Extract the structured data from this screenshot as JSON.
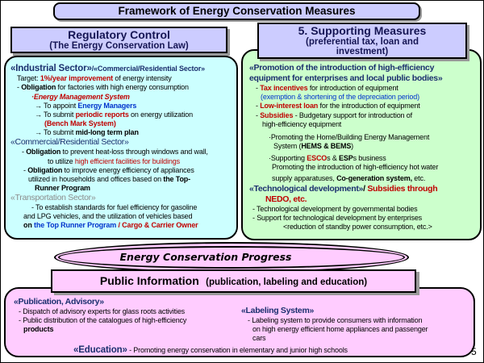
{
  "slide_number": "5",
  "title": "Framework of Energy Conservation Measures",
  "colors": {
    "header_fill": "#ccccff",
    "regulatory_fill": "#ccffff",
    "supporting_fill": "#ccffcc",
    "public_fill": "#ffccff",
    "accent_red": "#c00000",
    "accent_blue": "#0033cc",
    "accent_navy": "#1b2f6e",
    "accent_gray": "#8c8c8c"
  },
  "regulatory": {
    "header_title": "Regulatory Control",
    "header_sub": "(The Energy Conservation Law)",
    "lines": [
      {
        "r": [
          [
            "«Industrial Sector»",
            "navy bold big"
          ],
          [
            "/",
            "navy bold"
          ],
          [
            "«Commercial/Residential Sector»",
            "navy bold med"
          ]
        ]
      },
      {
        "i": 8,
        "r": [
          [
            "Target: ",
            "k"
          ],
          [
            "1%/year improvement",
            "red bold"
          ],
          [
            " of energy intensity",
            "k"
          ]
        ]
      },
      {
        "i": 8,
        "r": [
          [
            "- ",
            "k"
          ],
          [
            "Obligation",
            "bold"
          ],
          [
            " for factories with high energy consumption",
            "k"
          ]
        ]
      },
      {
        "i": 26,
        "r": [
          [
            "·Energy Management System",
            "red bold ital"
          ]
        ]
      },
      {
        "i": 30,
        "r": [
          [
            "→ To appoint ",
            "k"
          ],
          [
            "Energy Managers",
            "blue bold"
          ]
        ]
      },
      {
        "i": 30,
        "r": [
          [
            "→ To submit ",
            "k"
          ],
          [
            "periodic reports",
            "red bold"
          ],
          [
            " on energy utilization",
            "k"
          ]
        ]
      },
      {
        "i": 42,
        "r": [
          [
            "(Bench Mark System)",
            "red bold"
          ]
        ]
      },
      {
        "i": 30,
        "r": [
          [
            "→ To submit ",
            "k"
          ],
          [
            "mid-long term plan",
            "bold"
          ]
        ]
      },
      {
        "r": [
          [
            "«Commercial/Residential Sector»",
            "navy medbig"
          ]
        ]
      },
      {
        "i": 14,
        "r": [
          [
            "- ",
            "k"
          ],
          [
            "Obligation",
            "bold"
          ],
          [
            " to prevent heat-loss through windows and wall,",
            "k"
          ]
        ]
      },
      {
        "i": 46,
        "r": [
          [
            "to utilize ",
            "k"
          ],
          [
            "high efficient facilities for buildings",
            "red"
          ]
        ]
      },
      {
        "i": 16,
        "r": [
          [
            "- ",
            "k"
          ],
          [
            "Obligation",
            "bold"
          ],
          [
            " to improve energy efficiency of appliances",
            "k"
          ]
        ]
      },
      {
        "i": 22,
        "r": [
          [
            "utilized in households and offices based on ",
            "k"
          ],
          [
            "the Top-",
            "bold"
          ]
        ]
      },
      {
        "i": 30,
        "r": [
          [
            "Runner Program",
            "bold"
          ]
        ]
      },
      {
        "r": [
          [
            "«Transportation Sector»",
            "gray medbig"
          ]
        ]
      },
      {
        "i": 26,
        "r": [
          [
            "- To establish standards for fuel efficiency for gasoline",
            "k"
          ]
        ]
      },
      {
        "i": 16,
        "r": [
          [
            "and LPG vehicles, and the utilization of vehicles based",
            "k"
          ]
        ]
      },
      {
        "i": 16,
        "r": [
          [
            "on ",
            "bold"
          ],
          [
            "the Top Runner Program",
            "blue bold"
          ],
          [
            " / Cargo & Carrier Owner",
            "red bold"
          ]
        ]
      }
    ]
  },
  "supporting": {
    "header_title": "5. Supporting Measures",
    "header_sub1": "(preferential tax, loan and",
    "header_sub2": "investment)",
    "lines": [
      {
        "r": [
          [
            "«Promotion of the introduction of high-efficiency",
            "navy bold medbig"
          ]
        ]
      },
      {
        "r": [
          [
            "equipment for enterprises and local public bodies»",
            "navy bold medbig"
          ]
        ]
      },
      {
        "i": 8,
        "r": [
          [
            "- ",
            "k"
          ],
          [
            "Tax incentives",
            "red bold"
          ],
          [
            " for introduction of equipment",
            "k"
          ]
        ]
      },
      {
        "i": 14,
        "r": [
          [
            "(exemption & shortening of the depreciation period)",
            "blue"
          ]
        ]
      },
      {
        "i": 8,
        "r": [
          [
            "- ",
            "k"
          ],
          [
            "Low-interest loan",
            "red bold"
          ],
          [
            " for the introduction of equipment",
            "k"
          ]
        ]
      },
      {
        "i": 8,
        "r": [
          [
            "- ",
            "k"
          ],
          [
            "Subsidies",
            "red bold"
          ],
          [
            " - Budgetary support for introduction of",
            "k"
          ]
        ]
      },
      {
        "i": 16,
        "r": [
          [
            "high-efficiency equipment",
            "k"
          ]
        ]
      },
      {
        "i": 24,
        "mt": 5,
        "r": [
          [
            "·Promoting the Home/Building Energy Management",
            "k"
          ]
        ]
      },
      {
        "i": 30,
        "r": [
          [
            "System (",
            "k"
          ],
          [
            "HEMS & BEMS",
            "bold"
          ],
          [
            ")",
            "k"
          ]
        ]
      },
      {
        "i": 24,
        "mt": 4,
        "r": [
          [
            "·Supporting ",
            "k"
          ],
          [
            "ESCO",
            "red bold"
          ],
          [
            "s & ",
            "k"
          ],
          [
            "ESP",
            "bold"
          ],
          [
            "s business",
            "k"
          ]
        ]
      },
      {
        "i": 28,
        "r": [
          [
            "Promoting the introduction of high-efficiency hot water",
            "k"
          ]
        ]
      },
      {
        "i": 28,
        "mt": 3,
        "r": [
          [
            "supply apparatuses, ",
            "k"
          ],
          [
            "Co-generation system,",
            "bold"
          ],
          [
            " etc.",
            "k"
          ]
        ]
      },
      {
        "r": [
          [
            "«Technological development»",
            "navy bold medbig"
          ],
          [
            "/ ",
            "bold medbig"
          ],
          [
            "Subsidies through",
            "red bold medbig"
          ]
        ]
      },
      {
        "i": 20,
        "r": [
          [
            "NEDO, etc.",
            "red bold medbig"
          ]
        ]
      },
      {
        "i": 4,
        "r": [
          [
            "- Technological development by governmental bodies",
            "k"
          ]
        ]
      },
      {
        "i": 4,
        "r": [
          [
            "- Support for technological development by enterprises",
            "k"
          ]
        ]
      },
      {
        "i": 42,
        "r": [
          [
            "<reduction of standby power consumption, etc.>",
            "k"
          ]
        ]
      }
    ]
  },
  "progress": {
    "label": "Energy Conservation Progress"
  },
  "public_info": {
    "header_title": "Public Information",
    "header_sub": "(publication, labeling and education)",
    "left_lines": [
      {
        "r": [
          [
            "«Publication, Advisory»",
            "navy bold medbig"
          ]
        ]
      },
      {
        "i": 6,
        "r": [
          [
            "- Dispatch of advisory experts for glass roots activities",
            "k"
          ]
        ]
      },
      {
        "i": 6,
        "r": [
          [
            "- Public distribution of the catalogues of high-efficiency",
            "k"
          ]
        ]
      },
      {
        "i": 12,
        "r": [
          [
            "products",
            "bold"
          ]
        ]
      }
    ],
    "right_lines": [
      {
        "r": [
          [
            "«Labeling System»",
            "navy bold medbig"
          ]
        ]
      },
      {
        "i": 8,
        "r": [
          [
            "- Labeling system to provide consumers with information",
            "k"
          ]
        ]
      },
      {
        "i": 14,
        "r": [
          [
            "on high energy efficient home appliances and passenger",
            "k"
          ]
        ]
      },
      {
        "i": 14,
        "r": [
          [
            "cars",
            "k"
          ]
        ]
      }
    ],
    "education_lines": [
      {
        "r": [
          [
            "«Education»",
            "navy bold big"
          ],
          [
            "  - Promoting energy conservation in elementary and junior high schools",
            "k"
          ]
        ]
      }
    ]
  }
}
